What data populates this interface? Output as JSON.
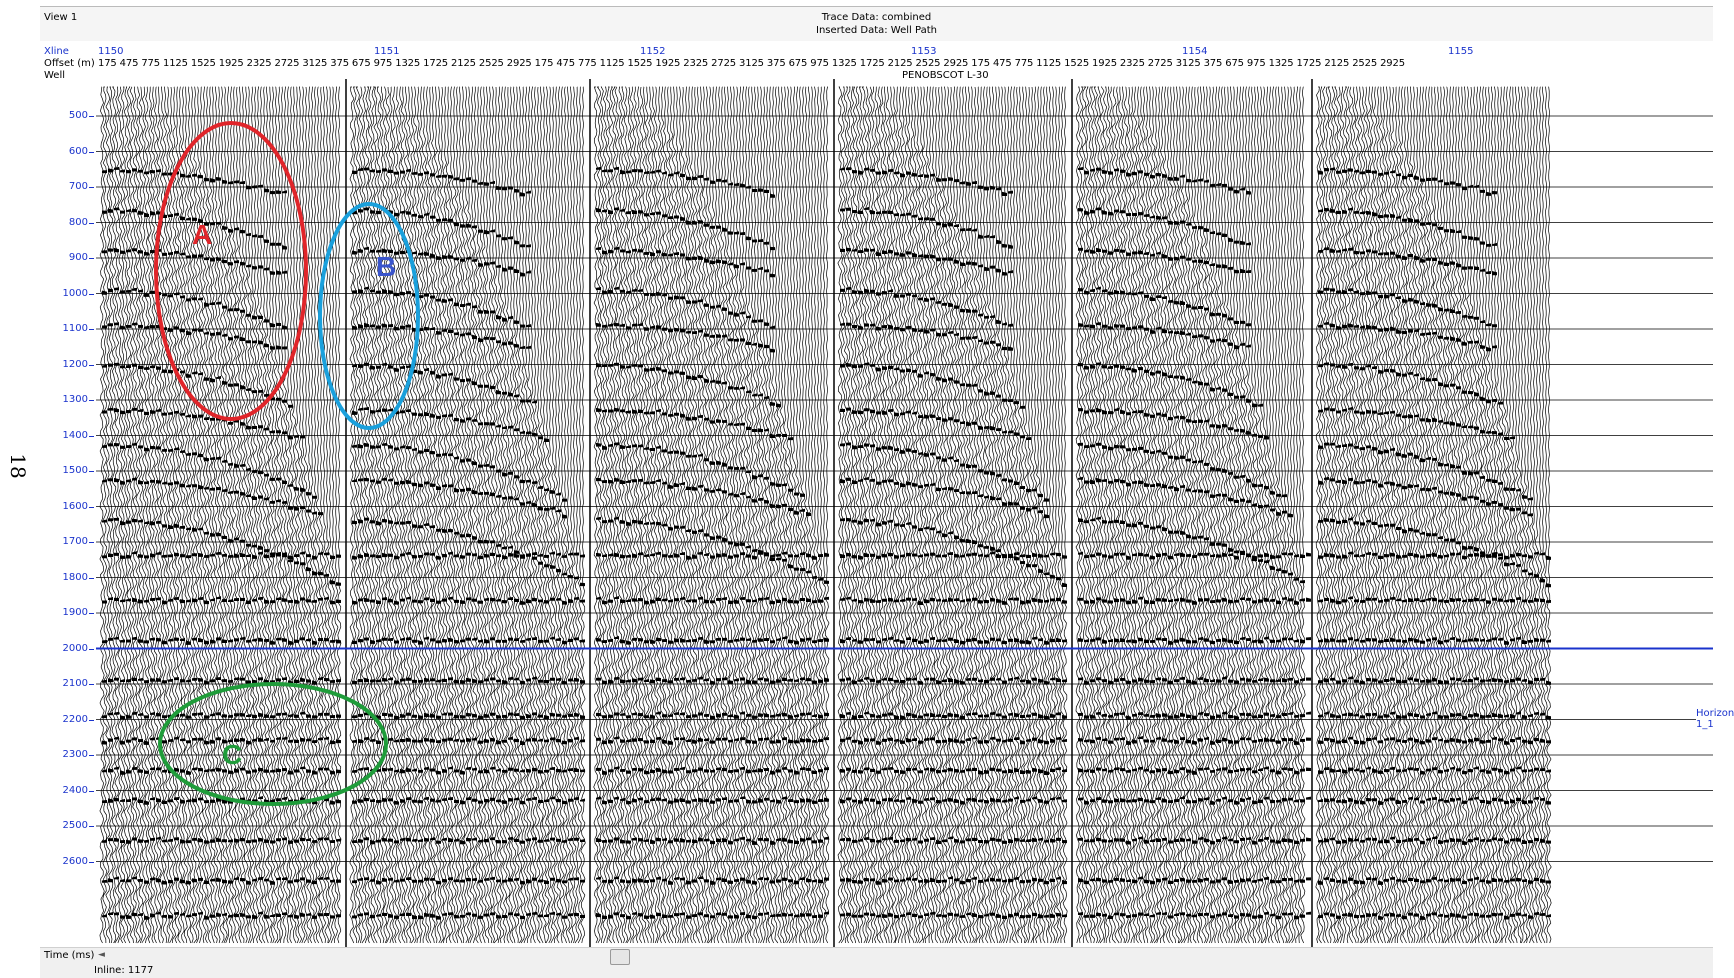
{
  "page_number": "18",
  "window": {
    "view_label": "View 1",
    "title_line1": "Trace Data: combined",
    "title_line2": "Inserted Data: Well Path"
  },
  "header": {
    "xline_label": "Xline",
    "offset_label": "Offset (m)",
    "well_label": "Well",
    "xlines": [
      "1150",
      "1151",
      "1152",
      "1153",
      "1154",
      "1155"
    ],
    "offset_ticks": "175  475  775  1125  1525  1925  2325  2725  3125  375  675  975  1325  1725  2125  2525  2925  175  475  775  1125  1525  1925  2325  2725  3125  375  675  975  1325  1725  2125  2525  2925  175  475  775  1125  1525  1925  2325  2725  3125  375  675  975  1325  1725  2125  2525  2925",
    "well_name": "PENOBSCOT L-30"
  },
  "time_axis": {
    "label": "Time (ms)",
    "ticks": [
      "500",
      "600",
      "700",
      "800",
      "900",
      "1000",
      "1100",
      "1200",
      "1300",
      "1400",
      "1500",
      "1600",
      "1700",
      "1800",
      "1900",
      "2000",
      "2100",
      "2200",
      "2300",
      "2400",
      "2500",
      "2600"
    ]
  },
  "horizon_label": "Horizon 1_1",
  "footer": {
    "inline_label": "Inline: 1177"
  },
  "annotations": [
    {
      "letter": "A",
      "color": "#e0252a"
    },
    {
      "letter": "B",
      "color": "#1aa0dc"
    },
    {
      "letter": "C",
      "color": "#1f9c3a"
    }
  ],
  "colors": {
    "axis_blue": "#1a33cc",
    "horizon": "#1a33cc",
    "trace": "#000000"
  }
}
